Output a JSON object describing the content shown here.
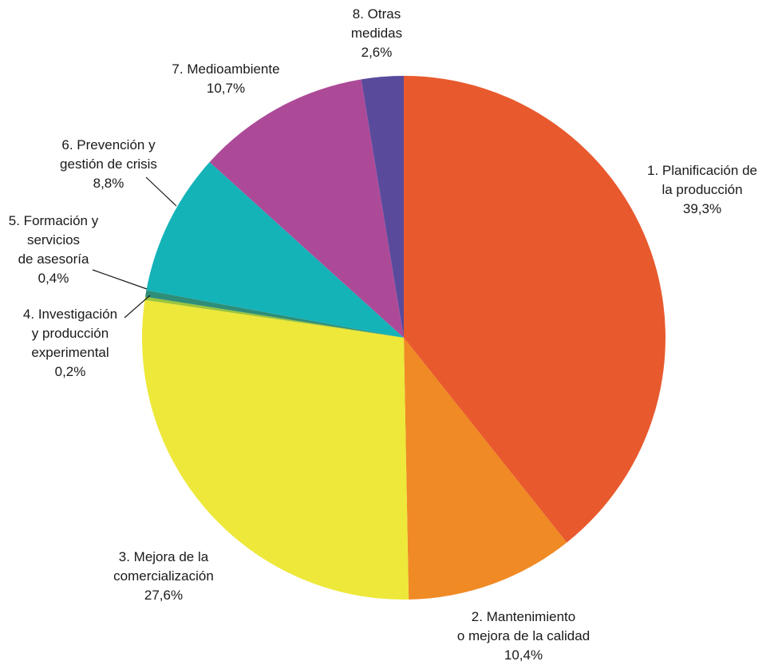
{
  "chart_data": {
    "type": "pie",
    "title": "",
    "slices": [
      {
        "label_lines": [
          "1. Planificación de",
          "la producción"
        ],
        "pct_text": "39,3%",
        "value": 39.3,
        "color": "#e85a2e"
      },
      {
        "label_lines": [
          "2. Mantenimiento",
          "o mejora de la calidad"
        ],
        "pct_text": "10,4%",
        "value": 10.4,
        "color": "#f08a24"
      },
      {
        "label_lines": [
          "3. Mejora de la",
          "comercialización"
        ],
        "pct_text": "27,6%",
        "value": 27.6,
        "color": "#ede83a"
      },
      {
        "label_lines": [
          "4. Investigación",
          "y producción",
          "experimental"
        ],
        "pct_text": "0,2%",
        "value": 0.2,
        "color": "#9bc43c"
      },
      {
        "label_lines": [
          "5. Formación y",
          "servicios",
          "de asesoría"
        ],
        "pct_text": "0,4%",
        "value": 0.4,
        "color": "#2e8e78"
      },
      {
        "label_lines": [
          "6. Prevención y",
          "gestión de crisis"
        ],
        "pct_text": "8,8%",
        "value": 8.8,
        "color": "#14b3b8"
      },
      {
        "label_lines": [
          "7. Medioambiente"
        ],
        "pct_text": "10,7%",
        "value": 10.7,
        "color": "#ad4a98"
      },
      {
        "label_lines": [
          "8. Otras",
          "medidas"
        ],
        "pct_text": "2,6%",
        "value": 2.6,
        "color": "#5a4a9c"
      }
    ]
  }
}
